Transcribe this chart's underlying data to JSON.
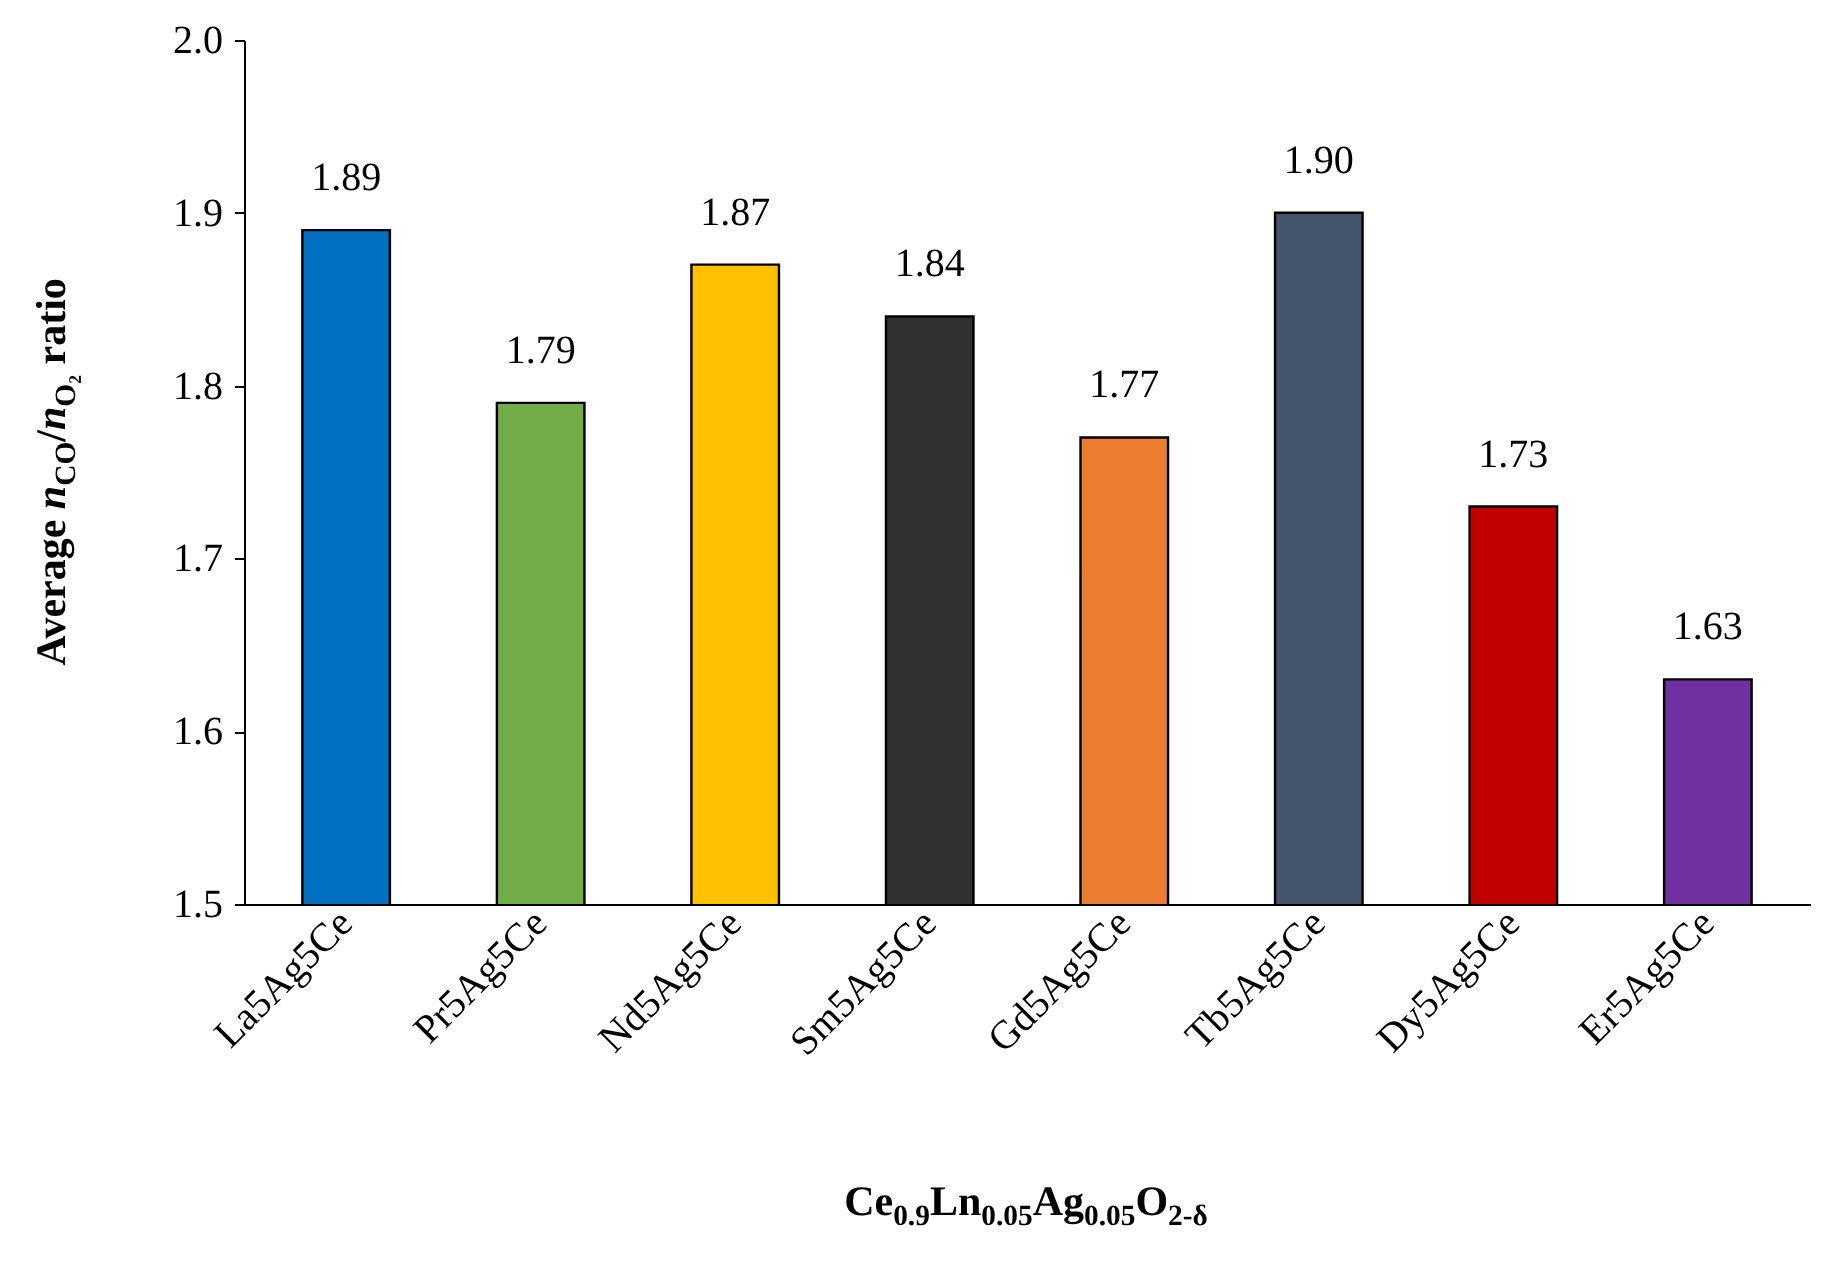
{
  "chart_data": {
    "type": "bar",
    "xlabel": "Ce$_{0.9}$Ln$_{0.05}$Ag$_{0.05}$O$_{2-δ}$",
    "ylabel": "Average n$_{CO}$/n$_{O₂}$ ratio",
    "categories": [
      "La5Ag5Ce",
      "Pr5Ag5Ce",
      "Nd5Ag5Ce",
      "Sm5Ag5Ce",
      "Gd5Ag5Ce",
      "Tb5Ag5Ce",
      "Dy5Ag5Ce",
      "Er5Ag5Ce"
    ],
    "values": [
      1.89,
      1.79,
      1.87,
      1.84,
      1.77,
      1.9,
      1.73,
      1.63
    ],
    "value_labels": [
      "1.89",
      "1.79",
      "1.87",
      "1.84",
      "1.77",
      "1.90",
      "1.73",
      "1.63"
    ],
    "colors": [
      "#0070c0",
      "#70ad47",
      "#ffc000",
      "#303030",
      "#ed7d31",
      "#44546a",
      "#c00000",
      "#7030a0"
    ],
    "ylim": [
      1.5,
      2.0
    ],
    "yticks": [
      1.5,
      1.6,
      1.7,
      1.8,
      1.9,
      {
        "value": 2.0,
        "label": "2.0"
      }
    ],
    "grid": false
  }
}
